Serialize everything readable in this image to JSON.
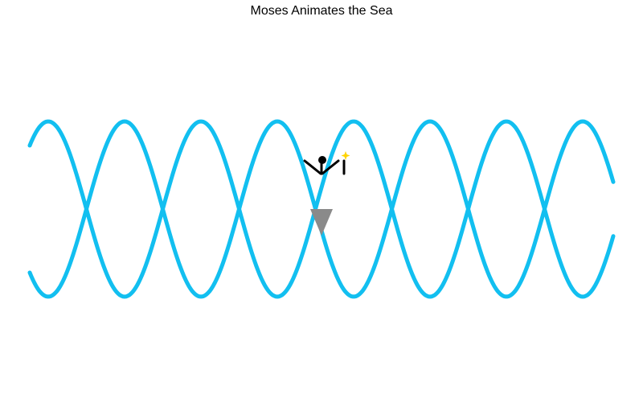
{
  "scene": {
    "title": "Moses Animates the Sea"
  },
  "colors": {
    "wave": "#12bff0",
    "figure": "#000000",
    "staff_spark": "#ffd400",
    "arrow": "#8a8a8a",
    "background": "#ffffff"
  },
  "icons": {
    "figure": "stick-figure-icon",
    "staff": "staff-icon",
    "spark": "spark-icon",
    "arrow": "down-triangle-icon"
  }
}
